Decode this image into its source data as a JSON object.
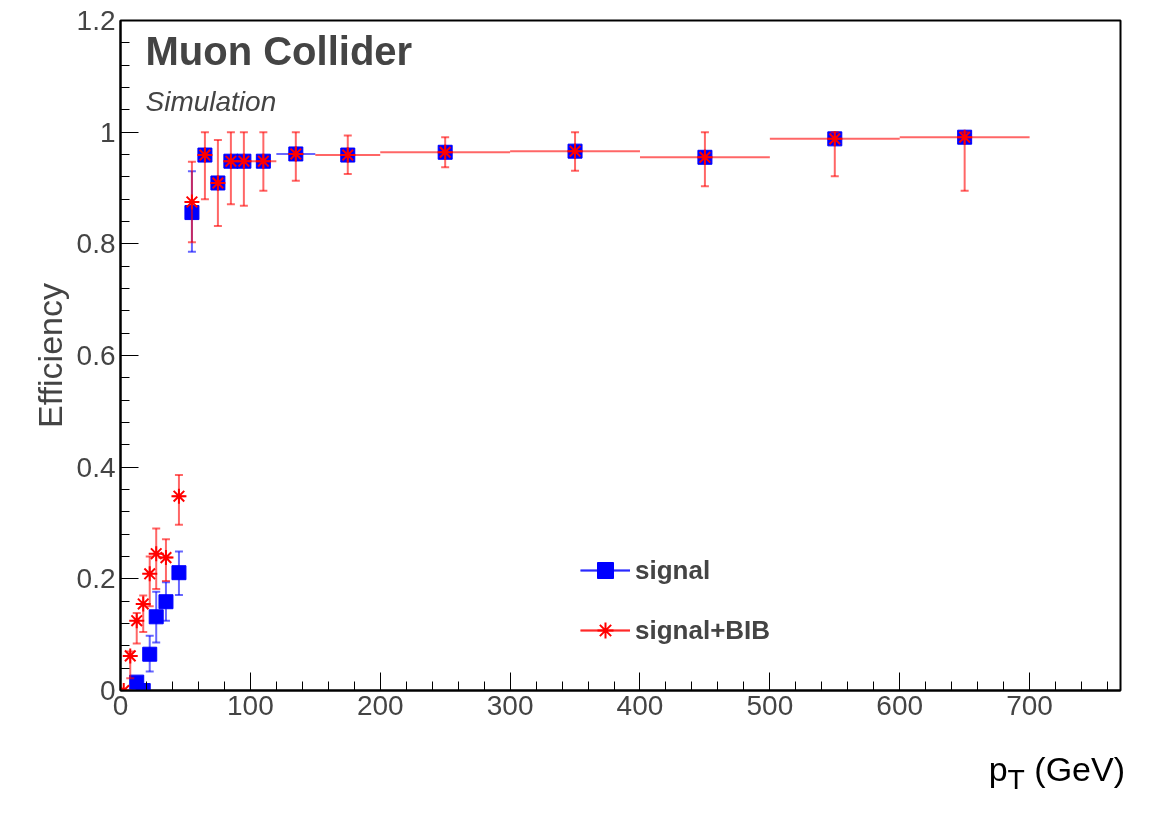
{
  "chart_data": {
    "type": "scatter",
    "xlabel": "p$_{T}$ (GeV)",
    "ylabel": "Efficiency",
    "annotations": [
      "Muon Collider",
      "Simulation"
    ],
    "x": [
      2.5,
      7.5,
      12.5,
      17.5,
      22.5,
      27.5,
      35,
      45,
      55,
      65,
      75,
      85,
      95,
      110,
      135,
      175,
      250,
      350,
      450,
      550,
      650
    ],
    "series": [
      {
        "name": "signal",
        "color": "#0000ff",
        "marker": "square",
        "values": [
          null,
          null,
          0.015,
          0,
          0.065,
          0.132,
          0.159,
          0.211,
          0.856,
          0.959,
          0.909,
          0.948,
          0.948,
          0.948,
          0.961,
          0.959,
          0.964,
          0.966,
          0.955,
          0.988,
          0.991
        ],
        "errors": [
          null,
          null,
          null,
          null,
          [
            0.034,
            0.098
          ],
          [
            0.086,
            0.177
          ],
          [
            0.125,
            0.194
          ],
          [
            0.171,
            0.249
          ],
          [
            0.786,
            0.93
          ],
          null,
          null,
          null,
          null,
          null,
          null,
          null,
          null,
          null,
          null,
          null,
          null
        ],
        "xerrors": [
          null,
          null,
          null,
          null,
          null,
          null,
          null,
          null,
          null,
          null,
          null,
          null,
          null,
          null,
          15,
          null,
          null,
          null,
          null,
          null,
          null
        ]
      },
      {
        "name": "signal+BIB",
        "color": "#ff0000",
        "marker": "cross",
        "values": [
          0,
          0.062,
          0.125,
          0.155,
          0.209,
          0.245,
          0.238,
          0.348,
          0.875,
          0.959,
          0.909,
          0.948,
          0.948,
          0.948,
          0.961,
          0.959,
          0.964,
          0.966,
          0.955,
          0.988,
          0.991
        ],
        "errors": [
          null,
          [
            0.022,
            0.07
          ],
          [
            0.084,
            0.139
          ],
          [
            0.105,
            0.17
          ],
          [
            0.151,
            0.24
          ],
          [
            0.182,
            0.29
          ],
          [
            0.196,
            0.271
          ],
          [
            0.297,
            0.386
          ],
          [
            0.803,
            0.947
          ],
          [
            0.88,
            1.0
          ],
          [
            0.832,
            0.986
          ],
          [
            0.871,
            1.0
          ],
          [
            0.868,
            1.0
          ],
          [
            0.895,
            1.0
          ],
          [
            0.913,
            1.0
          ],
          [
            0.925,
            0.994
          ],
          [
            0.937,
            0.991
          ],
          [
            0.931,
            1.0
          ],
          [
            0.903,
            1.0
          ],
          [
            0.921,
            1.0
          ],
          [
            0.895,
            1.0
          ]
        ],
        "xerrors": [
          2.5,
          2.5,
          2.5,
          2.5,
          2.5,
          2.5,
          5,
          5,
          5,
          5,
          5,
          5,
          5,
          10,
          null,
          25,
          50,
          50,
          50,
          50,
          50
        ]
      }
    ],
    "xlim": [
      0,
      770
    ],
    "xticks": [
      0,
      100,
      200,
      300,
      400,
      500,
      600,
      700
    ],
    "ylim": [
      0,
      1.2
    ],
    "yticks": [
      0,
      0.2,
      0.4,
      0.6,
      0.8,
      1,
      1.2
    ],
    "grid": false,
    "legend": "bottom right"
  }
}
